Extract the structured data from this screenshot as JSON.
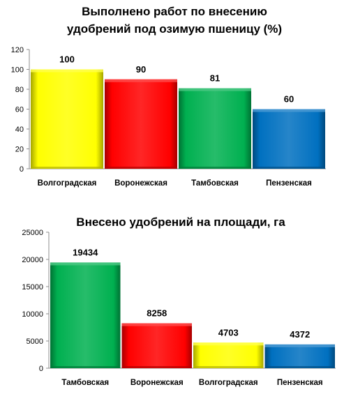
{
  "colors": {
    "yellow": "#ffff00",
    "red": "#ff0000",
    "green": "#00b050",
    "blue": "#0070c0"
  },
  "chart_data": [
    {
      "type": "bar",
      "title_lines": [
        "Выполнено работ по внесению",
        "удобрений под озимую пшеницу (%)"
      ],
      "categories": [
        "Волгоградская",
        "Воронежская",
        "Тамбовская",
        "Пензенская"
      ],
      "values": [
        100,
        90,
        81,
        60
      ],
      "data_labels": [
        "100",
        "90",
        "81",
        "60"
      ],
      "bar_colors": [
        "yellow",
        "red",
        "green",
        "blue"
      ],
      "ylim": [
        0,
        120
      ],
      "yticks": [
        0,
        20,
        40,
        60,
        80,
        100,
        120
      ],
      "ytick_labels": [
        "0",
        "20",
        "40",
        "60",
        "80",
        "100",
        "120"
      ],
      "grid": false,
      "legend": "none"
    },
    {
      "type": "bar",
      "title_lines": [
        "Внесено удобрений на площади, га"
      ],
      "categories": [
        "Тамбовская",
        "Воронежская",
        "Волгоградская",
        "Пензенская"
      ],
      "values": [
        19434,
        8258,
        4703,
        4372
      ],
      "data_labels": [
        "19434",
        "8258",
        "4703",
        "4372"
      ],
      "bar_colors": [
        "green",
        "red",
        "yellow",
        "blue"
      ],
      "ylim": [
        0,
        25000
      ],
      "yticks": [
        0,
        5000,
        10000,
        15000,
        20000,
        25000
      ],
      "ytick_labels": [
        "0",
        "5000",
        "10000",
        "15000",
        "20000",
        "25000"
      ],
      "grid": false,
      "legend": "none"
    }
  ]
}
